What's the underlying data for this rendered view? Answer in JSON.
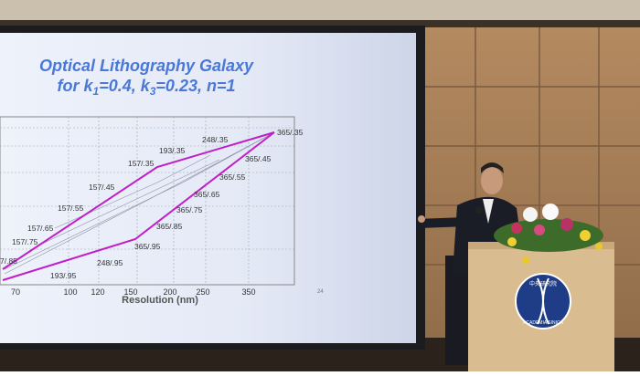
{
  "slide": {
    "title_line1": "Optical Lithography Galaxy",
    "title_line2": [
      "for k",
      "1",
      "=0.4, k",
      "3",
      "=0.23, n=1"
    ],
    "point_labels": [
      "365/.35",
      "248/.35",
      "193/.35",
      "157/.35",
      "365/.45",
      "365/.55",
      "157/.45",
      "365/.65",
      "157/.55",
      "365/.75",
      "365/.85",
      "157/.65",
      "157/.75",
      "365/.95",
      "248/.95",
      "193/.95",
      "7/.85"
    ],
    "x_ticks": [
      "70",
      "100",
      "120",
      "150",
      "200",
      "250",
      "350"
    ],
    "x_axis_label": "Resolution (nm)",
    "page_number": "24"
  },
  "podium": {
    "emblem_top": "中央研究院",
    "emblem_bottom": "ACADEMIA SINICA"
  }
}
